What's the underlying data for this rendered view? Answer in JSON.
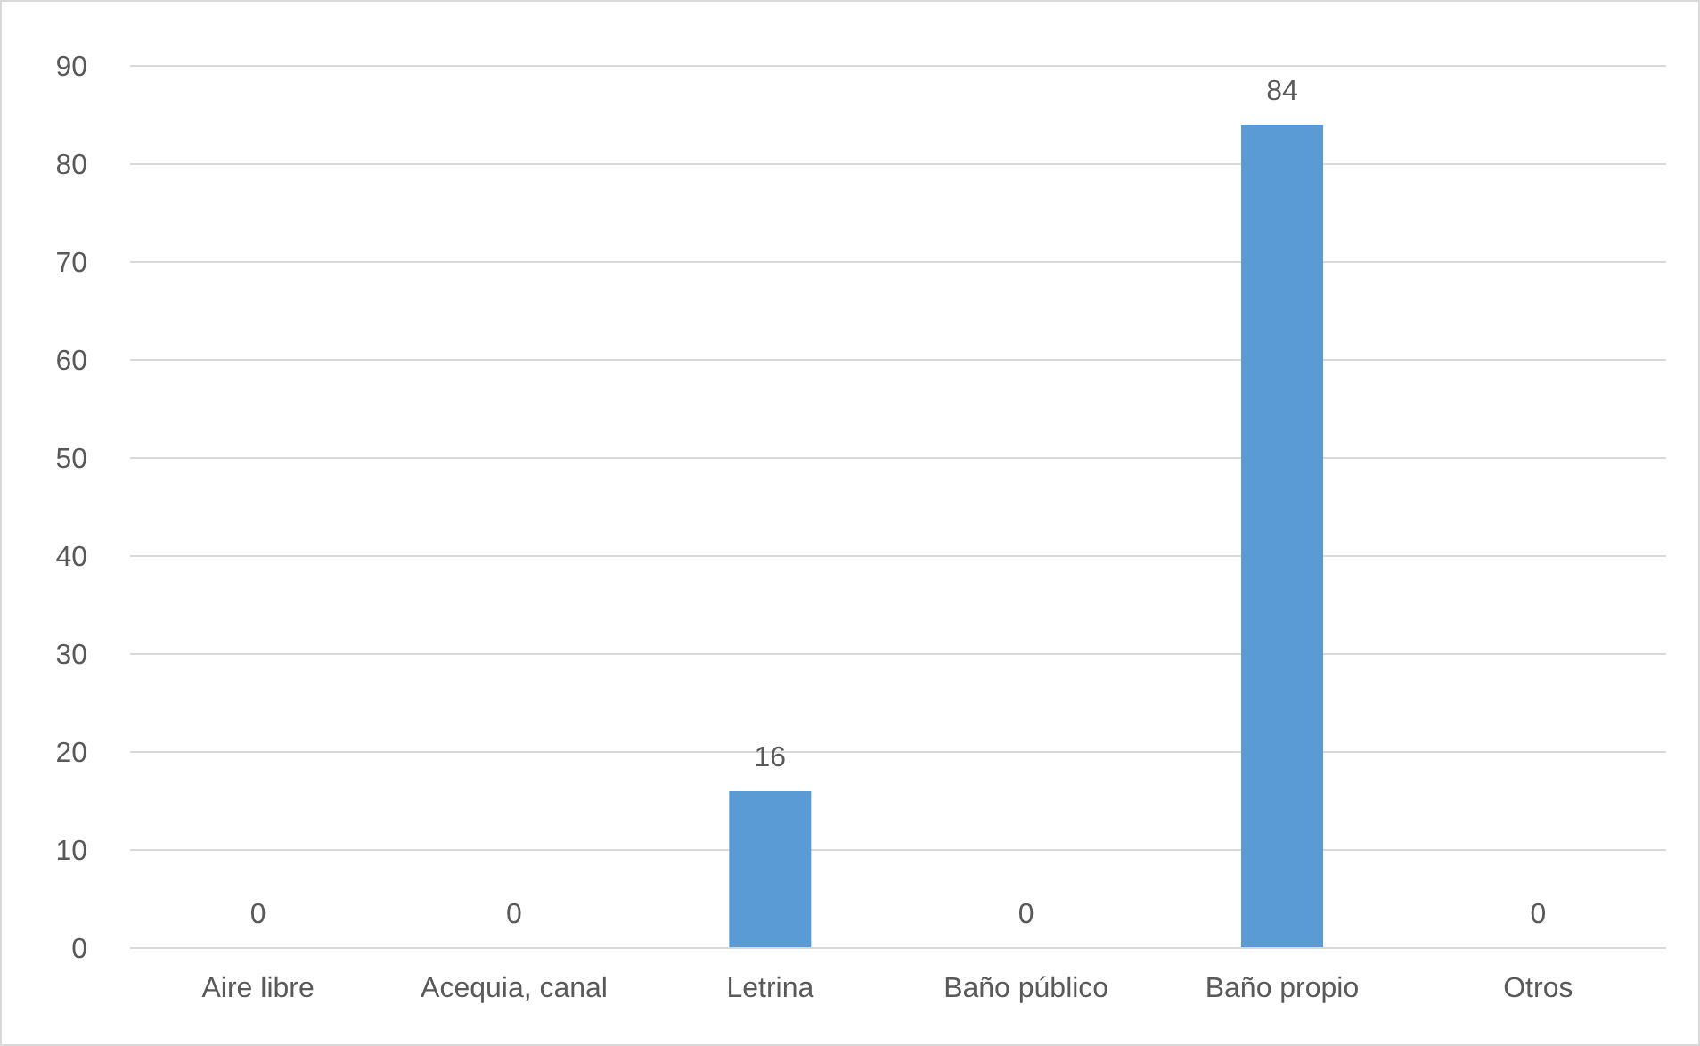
{
  "chart_data": {
    "type": "bar",
    "categories": [
      "Aire libre",
      "Acequia, canal",
      "Letrina",
      "Baño público",
      "Baño propio",
      "Otros"
    ],
    "values": [
      0,
      0,
      16,
      0,
      84,
      0
    ],
    "color": "#5b9bd5",
    "ylim": [
      0,
      90
    ],
    "yticks": [
      0,
      10,
      20,
      30,
      40,
      50,
      60,
      70,
      80,
      90
    ],
    "grid": "y",
    "data_labels": true
  }
}
